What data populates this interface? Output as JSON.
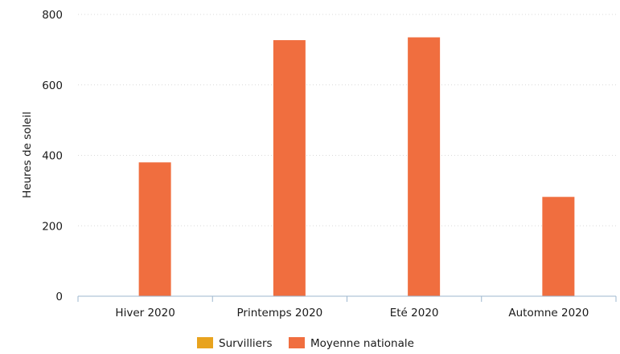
{
  "chart_data": {
    "type": "bar",
    "categories": [
      "Hiver 2020",
      "Printemps 2020",
      "Eté 2020",
      "Automne 2020"
    ],
    "series": [
      {
        "name": "Survilliers",
        "color": "#e8a31e",
        "values": [
          0,
          0,
          0,
          0
        ]
      },
      {
        "name": "Moyenne nationale",
        "color": "#f06e3f",
        "values": [
          380,
          727,
          735,
          282
        ]
      }
    ],
    "title": "",
    "xlabel": "",
    "ylabel": "Heures de soleil",
    "ylim": [
      0,
      800
    ],
    "yticks": [
      0,
      200,
      400,
      600,
      800
    ],
    "grid": true,
    "legend_position": "bottom-center"
  }
}
